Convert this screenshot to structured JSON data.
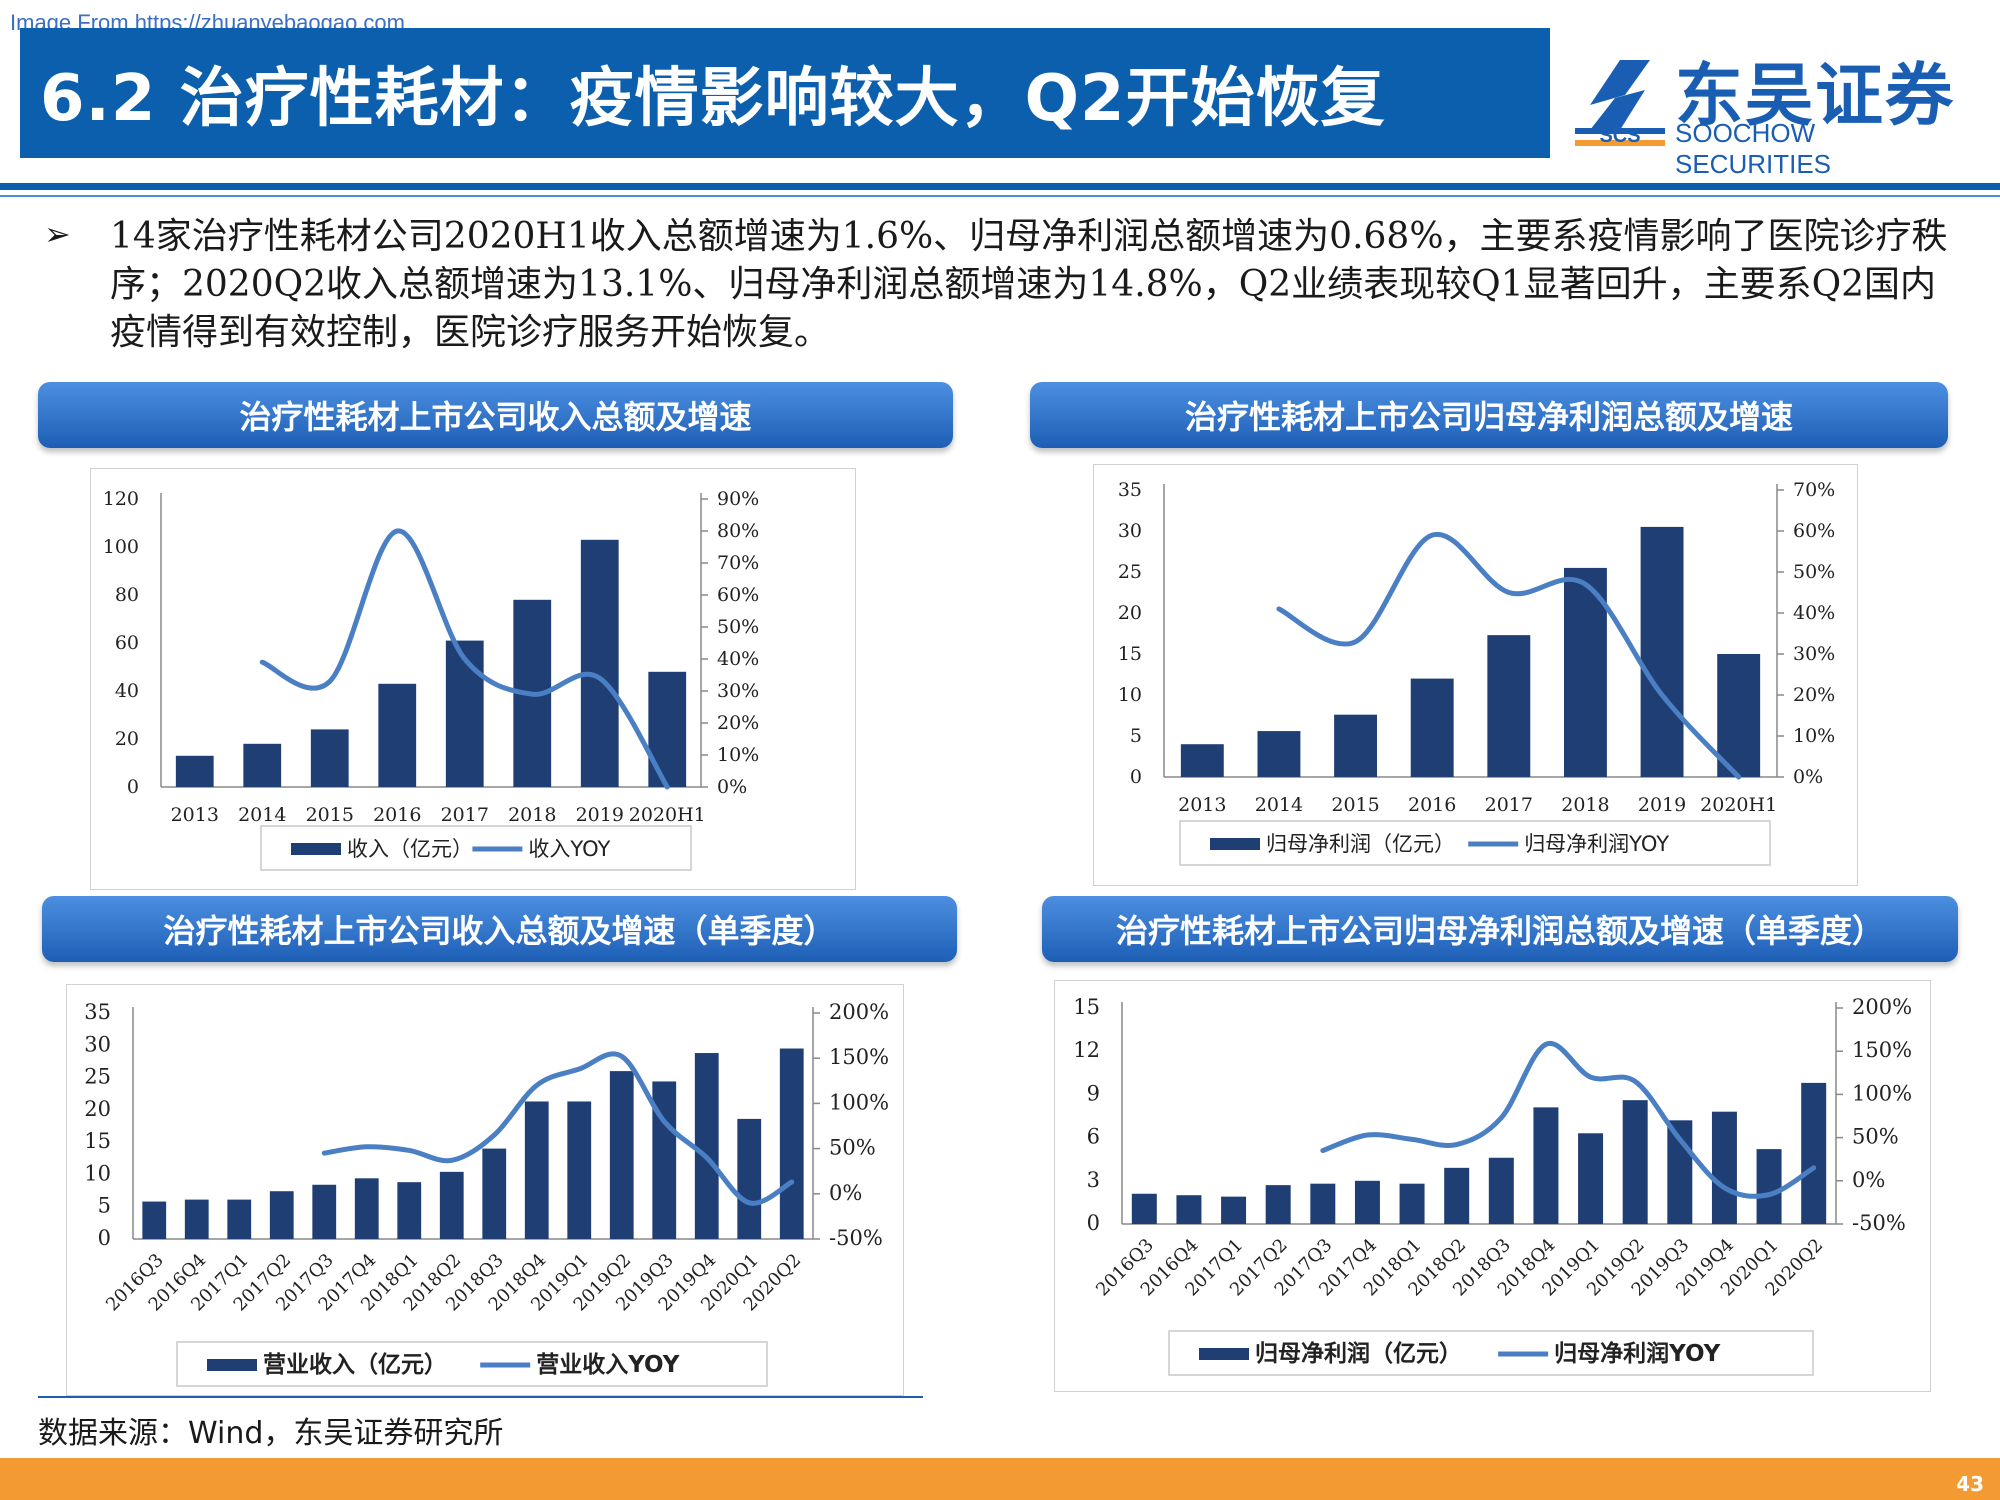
{
  "watermark": "Image From https://zhuanyebaogao.com",
  "title": "6.2 治疗性耗材：疫情影响较大，Q2开始恢复",
  "logo": {
    "cn": "东吴证券",
    "en": "SOOCHOW SECURITIES",
    "mark": "SCS"
  },
  "bullet": "14家治疗性耗材公司2020H1收入总额增速为1.6%、归母净利润总额增速为0.68%，主要系疫情影响了医院诊疗秩序；2020Q2收入总额增速为13.1%、归母净利润总额增速为14.8%，Q2业绩表现较Q1显著回升，主要系Q2国内疫情得到有效控制，医院诊疗服务开始恢复。",
  "sections": {
    "revenue_annual": "治疗性耗材上市公司收入总额及增速",
    "profit_annual": "治疗性耗材上市公司归母净利润总额及增速",
    "revenue_quarterly": "治疗性耗材上市公司收入总额及增速（单季度）",
    "profit_quarterly": "治疗性耗材上市公司归母净利润总额及增速（单季度）"
  },
  "source": "数据来源：Wind，东吴证券研究所",
  "page_number": "43",
  "colors": {
    "bar": "#1f3f74",
    "line": "#4a7fc4",
    "title_bar": "#0b5fad",
    "footer": "#f39a32"
  },
  "chart_data": [
    {
      "id": "c1",
      "type": "bar",
      "categories": [
        "2013",
        "2014",
        "2015",
        "2016",
        "2017",
        "2018",
        "2019",
        "2020H1"
      ],
      "series": [
        {
          "name": "收入（亿元）",
          "type": "bar",
          "axis": "left",
          "values": [
            13,
            18,
            24,
            43,
            61,
            78,
            103,
            48
          ]
        },
        {
          "name": "收入YOY",
          "type": "line",
          "axis": "right",
          "values": [
            null,
            39,
            33,
            80,
            40,
            29,
            34,
            0
          ]
        }
      ],
      "left_ticks": [
        0,
        20,
        40,
        60,
        80,
        100,
        120
      ],
      "left_ylim": [
        0,
        120
      ],
      "right_ticks": [
        "0%",
        "10%",
        "20%",
        "30%",
        "40%",
        "50%",
        "60%",
        "70%",
        "80%",
        "90%"
      ],
      "right_ylim": [
        0,
        90
      ],
      "legend": [
        "收入（亿元）",
        "收入YOY"
      ]
    },
    {
      "id": "c2",
      "type": "bar",
      "categories": [
        "2013",
        "2014",
        "2015",
        "2016",
        "2017",
        "2018",
        "2019",
        "2020H1"
      ],
      "series": [
        {
          "name": "归母净利润（亿元）",
          "type": "bar",
          "axis": "left",
          "values": [
            4,
            5.6,
            7.6,
            12,
            17.3,
            25.5,
            30.5,
            15
          ]
        },
        {
          "name": "归母净利润YOY",
          "type": "line",
          "axis": "right",
          "values": [
            null,
            41,
            33,
            59,
            45,
            47,
            20,
            0
          ]
        }
      ],
      "left_ticks": [
        0,
        5,
        10,
        15,
        20,
        25,
        30,
        35
      ],
      "left_ylim": [
        0,
        35
      ],
      "right_ticks": [
        "0%",
        "10%",
        "20%",
        "30%",
        "40%",
        "50%",
        "60%",
        "70%"
      ],
      "right_ylim": [
        0,
        70
      ],
      "legend": [
        "归母净利润（亿元）",
        "归母净利润YOY"
      ]
    },
    {
      "id": "c3",
      "type": "bar",
      "categories": [
        "2016Q3",
        "2016Q4",
        "2017Q1",
        "2017Q2",
        "2017Q3",
        "2017Q4",
        "2018Q1",
        "2018Q2",
        "2018Q3",
        "2018Q4",
        "2019Q1",
        "2019Q2",
        "2019Q3",
        "2019Q4",
        "2020Q1",
        "2020Q2"
      ],
      "series": [
        {
          "name": "营业收入（亿元）",
          "type": "bar",
          "axis": "left",
          "values": [
            5.8,
            6.1,
            6.1,
            7.4,
            8.4,
            9.4,
            8.8,
            10.4,
            14,
            21.3,
            21.3,
            26,
            24.4,
            28.8,
            18.6,
            29.5
          ]
        },
        {
          "name": "营业收入YOY",
          "type": "line",
          "axis": "right",
          "values": [
            null,
            null,
            null,
            null,
            45,
            52,
            48,
            37,
            65,
            120,
            138,
            152,
            80,
            40,
            -10,
            13
          ]
        }
      ],
      "left_ticks": [
        0,
        5,
        10,
        15,
        20,
        25,
        30,
        35
      ],
      "left_ylim": [
        0,
        35
      ],
      "right_ticks": [
        "-50%",
        "0%",
        "50%",
        "100%",
        "150%",
        "200%"
      ],
      "right_ylim": [
        -50,
        200
      ],
      "legend": [
        "营业收入（亿元）",
        "营业收入YOY"
      ]
    },
    {
      "id": "c4",
      "type": "bar",
      "categories": [
        "2016Q3",
        "2016Q4",
        "2017Q1",
        "2017Q2",
        "2017Q3",
        "2017Q4",
        "2018Q1",
        "2018Q2",
        "2018Q3",
        "2018Q4",
        "2019Q1",
        "2019Q2",
        "2019Q3",
        "2019Q4",
        "2020Q1",
        "2020Q2"
      ],
      "series": [
        {
          "name": "归母净利润（亿元）",
          "type": "bar",
          "axis": "left",
          "values": [
            2.1,
            2,
            1.9,
            2.7,
            2.8,
            3,
            2.8,
            3.9,
            4.6,
            8.1,
            6.3,
            8.6,
            7.2,
            7.8,
            5.2,
            9.8
          ]
        },
        {
          "name": "归母净利润YOY",
          "type": "line",
          "axis": "right",
          "values": [
            null,
            null,
            null,
            null,
            35,
            53,
            48,
            42,
            73,
            158,
            120,
            115,
            48,
            -8,
            -16,
            15
          ]
        }
      ],
      "left_ticks": [
        0,
        3,
        6,
        9,
        12,
        15
      ],
      "left_ylim": [
        0,
        15
      ],
      "right_ticks": [
        "-50%",
        "0%",
        "50%",
        "100%",
        "150%",
        "200%"
      ],
      "right_ylim": [
        -50,
        200
      ],
      "legend": [
        "归母净利润（亿元）",
        "归母净利润YOY"
      ]
    }
  ]
}
